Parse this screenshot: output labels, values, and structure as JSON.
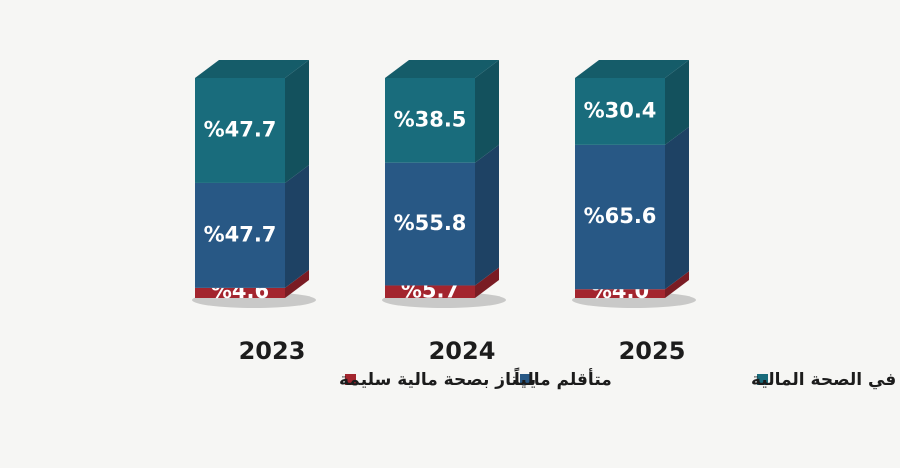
{
  "chart_data": {
    "type": "stacked-bar-3d",
    "categories": [
      "2023",
      "2024",
      "2025"
    ],
    "series": [
      {
        "name": "يمتاز بصحة مالية سليمة",
        "color": "#a3252e",
        "values": [
          4.6,
          5.7,
          4.0
        ],
        "value_labels": [
          "%4.6",
          "%5.7",
          "%4.0"
        ]
      },
      {
        "name": "متأقلم مالياً",
        "color": "#285885",
        "values": [
          47.7,
          55.8,
          65.6
        ],
        "value_labels": [
          "%47.7",
          "%55.8",
          "%65.6"
        ]
      },
      {
        "name": "يعاني من ضعف في الصحة المالية",
        "color": "#196c7c",
        "values": [
          47.7,
          38.5,
          30.4
        ],
        "value_labels": [
          "%47.7",
          "%38.5",
          "%30.4"
        ]
      }
    ]
  }
}
